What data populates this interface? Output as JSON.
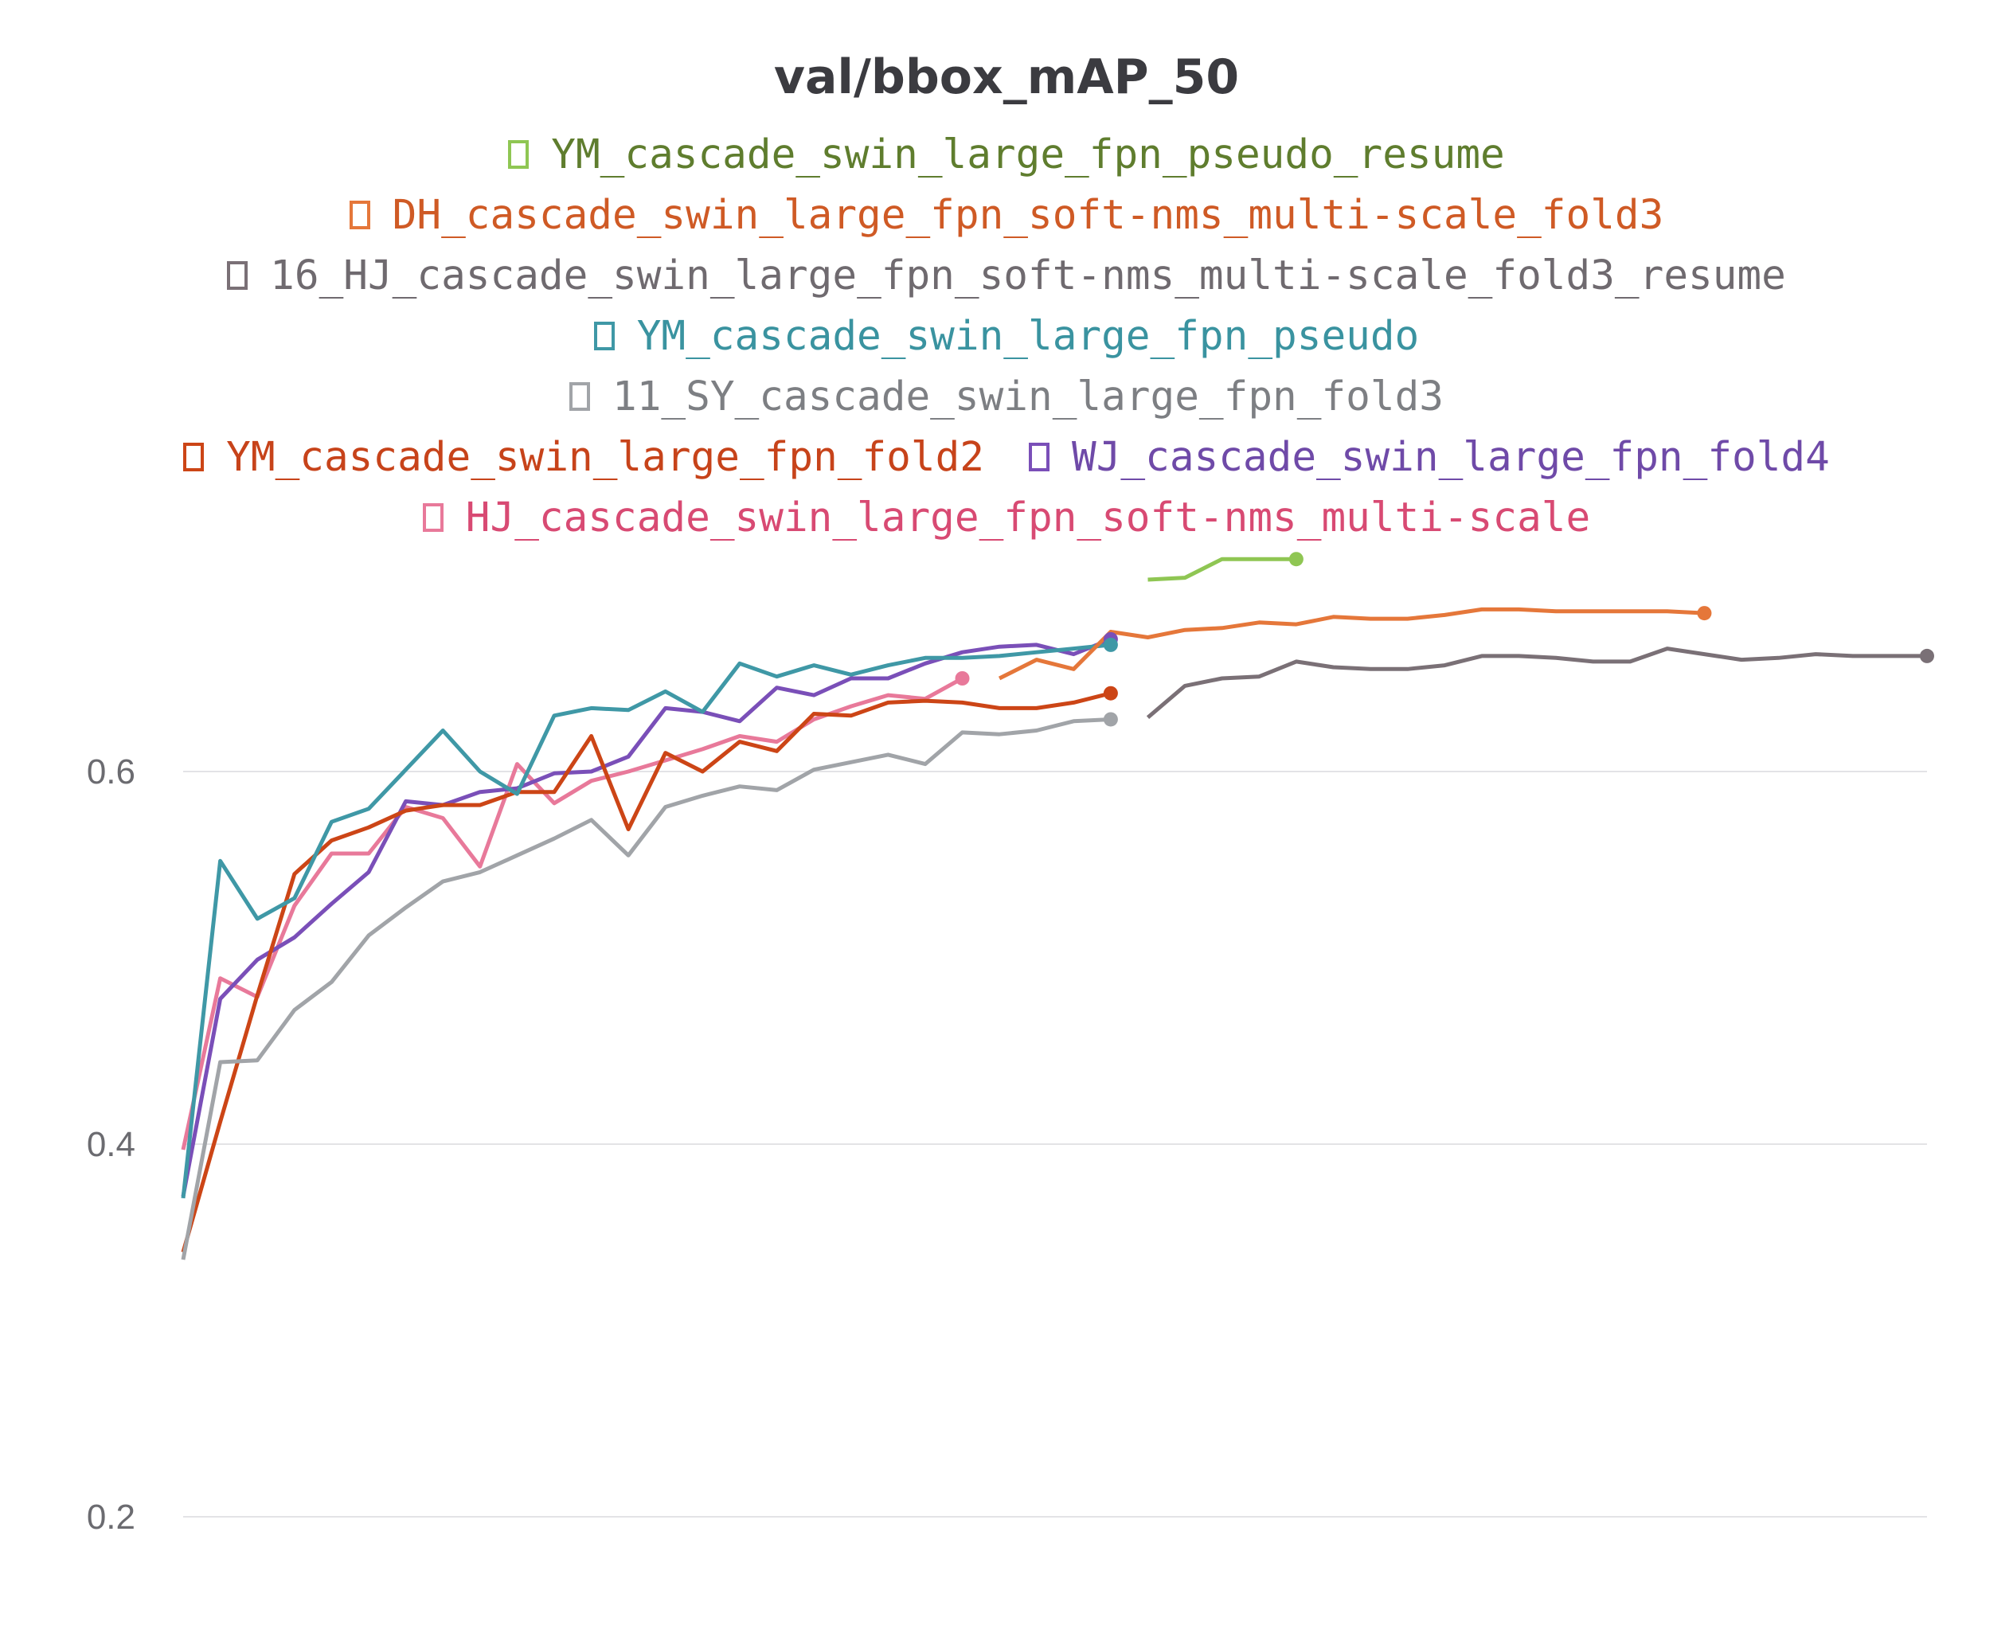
{
  "chart_data": {
    "type": "line",
    "title": "val/bbox_mAP_50",
    "xlabel": "",
    "ylabel": "",
    "ylim": [
      0.1,
      0.83
    ],
    "xlim": [
      0,
      47
    ],
    "y_ticks": [
      {
        "value": 0.2,
        "label": "0.2"
      },
      {
        "value": 0.4,
        "label": "0.4"
      },
      {
        "value": 0.6,
        "label": "0.6"
      }
    ],
    "grid": true,
    "legend_placement": "top",
    "legend_rows": [
      [
        0
      ],
      [
        1
      ],
      [
        2
      ],
      [
        3
      ],
      [
        4
      ],
      [
        5,
        6
      ],
      [
        7
      ]
    ],
    "series": [
      {
        "name": "YM_cascade_swin_large_fpn_pseudo_resume",
        "color": "#8fc653",
        "text_color": "#5f7d2e",
        "x": [
          26,
          27,
          28,
          29,
          30
        ],
        "y": [
          0.703,
          0.704,
          0.714,
          0.714,
          0.714
        ]
      },
      {
        "name": "DH_cascade_swin_large_fpn_soft-nms_multi-scale_fold3",
        "color": "#e5773a",
        "text_color": "#cf5a25",
        "x": [
          22,
          23,
          24,
          25,
          26,
          27,
          28,
          29,
          30,
          31,
          32,
          33,
          34,
          35,
          36,
          37,
          38,
          39,
          40,
          41
        ],
        "y": [
          0.65,
          0.66,
          0.655,
          0.675,
          0.672,
          0.676,
          0.677,
          0.68,
          0.679,
          0.683,
          0.682,
          0.682,
          0.684,
          0.687,
          0.687,
          0.686,
          0.686,
          0.686,
          0.686,
          0.685
        ]
      },
      {
        "name": "16_HJ_cascade_swin_large_fpn_soft-nms_multi-scale_fold3_resume",
        "color": "#7a7076",
        "text_color": "#6f6a6f",
        "x": [
          26,
          27,
          28,
          29,
          30,
          31,
          32,
          33,
          34,
          35,
          36,
          37,
          38,
          39,
          40,
          41,
          42,
          43,
          44,
          45,
          46,
          47
        ],
        "y": [
          0.629,
          0.646,
          0.65,
          0.651,
          0.659,
          0.656,
          0.655,
          0.655,
          0.657,
          0.662,
          0.662,
          0.661,
          0.659,
          0.659,
          0.666,
          0.663,
          0.66,
          0.661,
          0.663,
          0.662,
          0.662,
          0.662
        ]
      },
      {
        "name": "YM_cascade_swin_large_fpn_pseudo",
        "color": "#3f98a6",
        "text_color": "#3a93a0",
        "x": [
          0,
          1,
          2,
          3,
          4,
          5,
          6,
          7,
          8,
          9,
          10,
          11,
          12,
          13,
          14,
          15,
          16,
          17,
          18,
          19,
          20,
          21,
          22,
          23,
          24,
          25
        ],
        "y": [
          0.371,
          0.552,
          0.521,
          0.532,
          0.573,
          0.58,
          0.601,
          0.622,
          0.6,
          0.588,
          0.63,
          0.634,
          0.633,
          0.643,
          0.632,
          0.658,
          0.651,
          0.657,
          0.652,
          0.657,
          0.661,
          0.661,
          0.662,
          0.664,
          0.666,
          0.668
        ]
      },
      {
        "name": "11_SY_cascade_swin_large_fpn_fold3",
        "color": "#a1a4a8",
        "text_color": "#7d7f83",
        "x": [
          0,
          1,
          2,
          3,
          4,
          5,
          6,
          7,
          8,
          9,
          10,
          11,
          12,
          13,
          14,
          15,
          16,
          17,
          18,
          19,
          20,
          21,
          22,
          23,
          24,
          25
        ],
        "y": [
          0.338,
          0.444,
          0.445,
          0.472,
          0.487,
          0.512,
          0.527,
          0.541,
          0.546,
          0.555,
          0.564,
          0.574,
          0.555,
          0.581,
          0.587,
          0.592,
          0.59,
          0.601,
          0.605,
          0.609,
          0.604,
          0.621,
          0.62,
          0.622,
          0.627,
          0.628
        ]
      },
      {
        "name": "YM_cascade_swin_large_fpn_fold2",
        "color": "#cc4516",
        "text_color": "#c7431a",
        "x": [
          0,
          1,
          2,
          3,
          4,
          5,
          6,
          7,
          8,
          9,
          10,
          11,
          12,
          13,
          14,
          15,
          16,
          17,
          18,
          19,
          20,
          21,
          22,
          23,
          24,
          25
        ],
        "y": [
          0.342,
          0.412,
          0.48,
          0.545,
          0.563,
          0.57,
          0.579,
          0.582,
          0.582,
          0.589,
          0.589,
          0.619,
          0.569,
          0.61,
          0.6,
          0.616,
          0.611,
          0.631,
          0.63,
          0.637,
          0.638,
          0.637,
          0.634,
          0.634,
          0.637,
          0.642
        ]
      },
      {
        "name": "WJ_cascade_swin_large_fpn_fold4",
        "color": "#7a4fb8",
        "text_color": "#6f4aa8",
        "x": [
          0,
          1,
          2,
          3,
          4,
          5,
          6,
          7,
          8,
          9,
          10,
          11,
          12,
          13,
          14,
          15,
          16,
          17,
          18,
          19,
          20,
          21,
          22,
          23,
          24,
          25
        ],
        "y": [
          0.372,
          0.478,
          0.499,
          0.511,
          0.529,
          0.546,
          0.584,
          0.582,
          0.589,
          0.591,
          0.599,
          0.6,
          0.608,
          0.634,
          0.632,
          0.627,
          0.645,
          0.641,
          0.65,
          0.65,
          0.658,
          0.664,
          0.667,
          0.668,
          0.663,
          0.671
        ]
      },
      {
        "name": "HJ_cascade_swin_large_fpn_soft-nms_multi-scale",
        "color": "#e8799a",
        "text_color": "#d84a73",
        "x": [
          0,
          1,
          2,
          3,
          4,
          5,
          6,
          7,
          8,
          9,
          10,
          11,
          12,
          13,
          14,
          15,
          16,
          17,
          18,
          19,
          20,
          21
        ],
        "y": [
          0.397,
          0.489,
          0.479,
          0.528,
          0.556,
          0.556,
          0.581,
          0.575,
          0.549,
          0.604,
          0.583,
          0.595,
          0.6,
          0.606,
          0.612,
          0.619,
          0.616,
          0.628,
          0.635,
          0.641,
          0.639,
          0.65
        ]
      }
    ]
  }
}
